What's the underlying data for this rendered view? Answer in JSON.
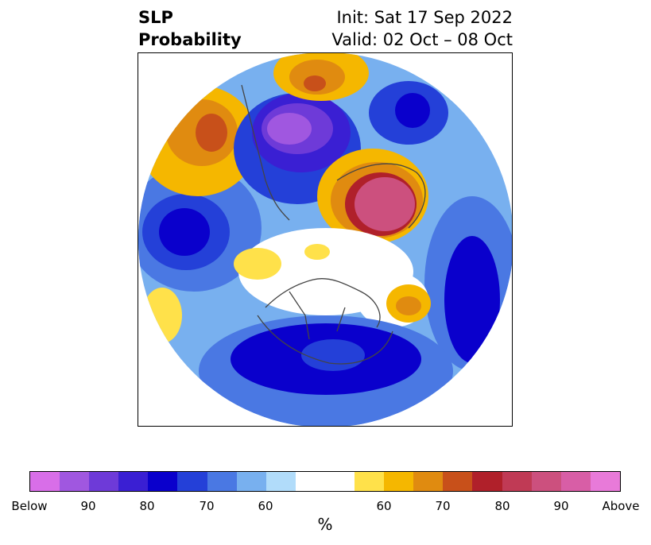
{
  "title": {
    "left_line1": "SLP",
    "left_line2": "Probability",
    "right_line1": "Init: Sat 17 Sep 2022",
    "right_line2": "Valid: 02 Oct – 08 Oct"
  },
  "colorbar": {
    "colors": [
      "#d86ee8",
      "#a057e0",
      "#6e3ad8",
      "#3a1fd3",
      "#0a00cc",
      "#2440d8",
      "#4a78e3",
      "#78b0ef",
      "#b1dcfa",
      "#ffffff",
      "#ffffff",
      "#ffe14a",
      "#f5b700",
      "#e08b10",
      "#c8501a",
      "#b0202a",
      "#c03a55",
      "#cc507e",
      "#d85ea6",
      "#e87ad9"
    ],
    "tick_labels": [
      "Below",
      "90",
      "80",
      "70",
      "60",
      "60",
      "70",
      "80",
      "90",
      "Above"
    ],
    "unit_label": "%"
  },
  "anomaly_colors": {
    "below_deep": "#9a55e0",
    "below_strong": "#3a1fd3",
    "below_mid": "#0a00cc",
    "below_low": "#4a78e3",
    "below_weak": "#b1dcfa",
    "above_weak": "#ffe14a",
    "above_low": "#f5b700",
    "above_mid": "#e08b10",
    "above_strong": "#b0202a",
    "above_deep": "#cc507e",
    "coastline": "#444444"
  }
}
